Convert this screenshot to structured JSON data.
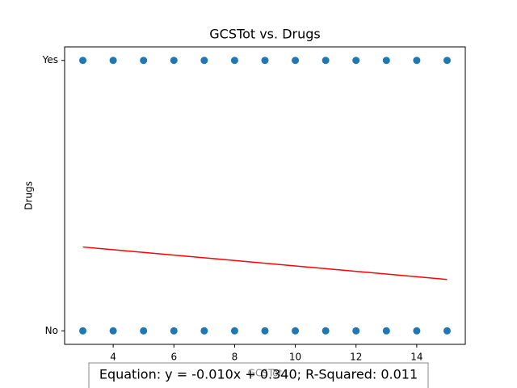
{
  "chart_data": {
    "type": "scatter",
    "title": "GCSTot vs. Drugs",
    "xlabel": "GCSTot",
    "ylabel": "Drugs",
    "annotation": "Equation: y = -0.010x + 0.340; R-Squared: 0.011",
    "xlim": [
      2.4,
      15.6
    ],
    "ylim": [
      -0.05,
      1.05
    ],
    "xticks": [
      4,
      6,
      8,
      10,
      12,
      14
    ],
    "yticks": [
      {
        "value": 0,
        "label": "No"
      },
      {
        "value": 1,
        "label": "Yes"
      }
    ],
    "series": [
      {
        "type": "scatter",
        "color": "#1f77b4",
        "x": [
          3,
          4,
          5,
          6,
          7,
          8,
          9,
          10,
          11,
          12,
          13,
          14,
          15,
          3,
          4,
          5,
          6,
          7,
          8,
          9,
          10,
          11,
          12,
          13,
          14,
          15
        ],
        "values": [
          1,
          1,
          1,
          1,
          1,
          1,
          1,
          1,
          1,
          1,
          1,
          1,
          1,
          0,
          0,
          0,
          0,
          0,
          0,
          0,
          0,
          0,
          0,
          0,
          0,
          0
        ]
      },
      {
        "type": "line",
        "color": "#ff0000",
        "x": [
          3,
          15
        ],
        "values": [
          0.31,
          0.19
        ]
      }
    ]
  }
}
